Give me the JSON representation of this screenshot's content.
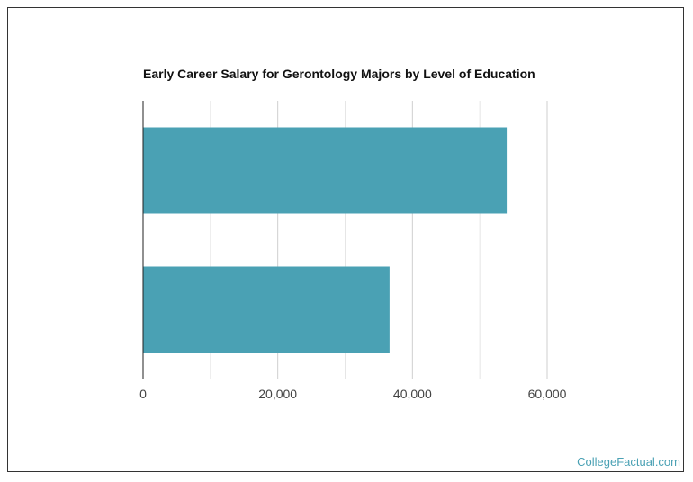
{
  "chart_data": {
    "type": "bar",
    "orientation": "horizontal",
    "title": "Early Career Salary for Gerontology Majors by Level of Education",
    "categories": [
      "",
      ""
    ],
    "values": [
      54000,
      36600
    ],
    "xlim": [
      0,
      60000
    ],
    "x_ticks": [
      0,
      20000,
      40000,
      60000
    ],
    "x_tick_labels": [
      "0",
      "20,000",
      "40,000",
      "60,000"
    ],
    "minor_gridlines_every": 10000,
    "grid": true,
    "legend": "none",
    "bar_color": "#4aa1b4",
    "grid_color": "#e6e6e6"
  },
  "watermark": "CollegeFactual.com"
}
